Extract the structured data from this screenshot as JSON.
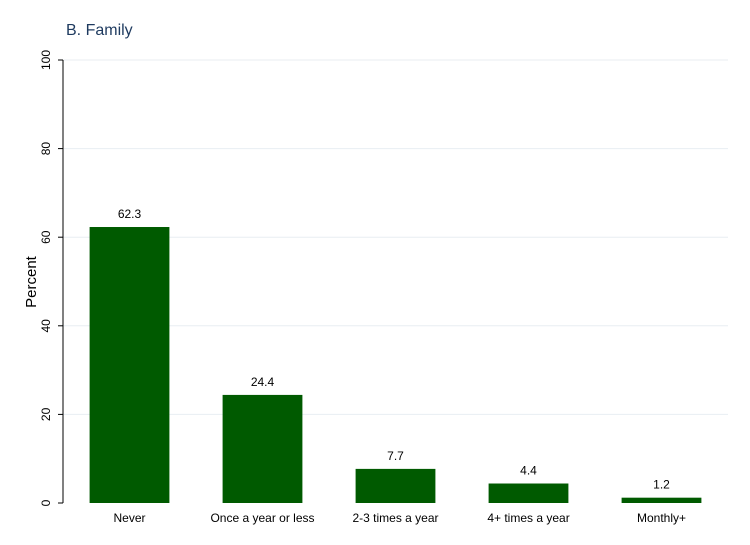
{
  "chart_data": {
    "type": "bar",
    "title": "B. Family",
    "ylabel": "Percent",
    "xlabel": "",
    "categories": [
      "Never",
      "Once a year or less",
      "2-3 times a year",
      "4+ times a year",
      "Monthly+"
    ],
    "values": [
      62.3,
      24.4,
      7.7,
      4.4,
      1.2
    ],
    "data_labels": [
      "62.3",
      "24.4",
      "7.7",
      "4.4",
      "1.2"
    ],
    "ylim": [
      0,
      100
    ],
    "yticks": [
      0,
      20,
      40,
      60,
      80,
      100
    ],
    "ytick_labels": [
      "0",
      "20",
      "40",
      "60",
      "80",
      "100"
    ],
    "grid": true,
    "legend": "none",
    "colors": {
      "bar": "#005a00",
      "title": "#1e3a5f",
      "grid": "#e8eef2"
    }
  }
}
